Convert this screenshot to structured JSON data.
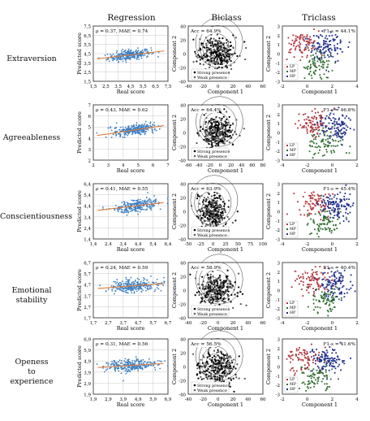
{
  "columns": [
    "Regression",
    "Biclass",
    "Triclass"
  ],
  "rows": [
    {
      "label": [
        "Extraversion"
      ],
      "regression": {
        "ann": "ρ = 0.37, MAE = 0.74",
        "yticks": [
          "1,5",
          "2,5",
          "3,5",
          "4,5",
          "5,5",
          "6,5",
          "7,5"
        ],
        "xticks": [
          "1,5",
          "2,5",
          "3,5",
          "4,5",
          "5,5",
          "6,5",
          "7,5"
        ],
        "range": [
          1.5,
          7.5
        ],
        "center": [
          4.4,
          4.35
        ],
        "slope": 0.16
      },
      "biclass": {
        "ann": "Acc = 64.9%",
        "xticks": [
          "-40",
          "-20",
          "0",
          "20",
          "40",
          "60"
        ],
        "yticks": [
          "40",
          "20",
          "0",
          "-20",
          "-40"
        ],
        "xlim": [
          -55,
          75
        ],
        "ylim": [
          -45,
          48
        ]
      },
      "triclass": {
        "ann": "F1-s = 44.1%",
        "xticks": [
          "-2",
          "0",
          "2",
          "4"
        ],
        "yticks": [
          "3",
          "2",
          "1",
          "0",
          "-1",
          "-2",
          "-3"
        ],
        "xlim": [
          -3.2,
          4.2
        ],
        "ylim": [
          -3.5,
          3.5
        ]
      }
    },
    {
      "label": [
        "Agreeableness"
      ],
      "regression": {
        "ann": "ρ = 0.43, MAE = 0.62",
        "yticks": [
          "2",
          "3",
          "4",
          "5",
          "6",
          "7"
        ],
        "xticks": [
          "2",
          "3",
          "4",
          "5",
          "6",
          "7"
        ],
        "range": [
          1.5,
          7.2
        ],
        "center": [
          4.6,
          4.6
        ],
        "slope": 0.2
      },
      "biclass": {
        "ann": "Acc = 64.4%",
        "xticks": [
          "-60",
          "-40",
          "-20",
          "0",
          "20",
          "40",
          "60",
          "80"
        ],
        "yticks": [
          "40",
          "20",
          "0",
          "-20",
          "-40"
        ],
        "xlim": [
          -65,
          88
        ],
        "ylim": [
          -45,
          48
        ]
      },
      "triclass": {
        "ann": "F1-s = 46.8%",
        "xticks": [
          "-4",
          "-2",
          "0",
          "2"
        ],
        "yticks": [
          "3",
          "2",
          "1",
          "0",
          "-1",
          "-2",
          "-3"
        ],
        "xlim": [
          -4.5,
          3.5
        ],
        "ylim": [
          -3.5,
          3.5
        ]
      }
    },
    {
      "label": [
        "Conscientiousness"
      ],
      "regression": {
        "ann": "ρ = 0.41, MAE = 0.55",
        "yticks": [
          "1,4",
          "2,4",
          "3,4",
          "4,4",
          "5,4",
          "6,4"
        ],
        "xticks": [
          "1,4",
          "2,4",
          "3,4",
          "4,4",
          "5,4",
          "6,4"
        ],
        "range": [
          1.4,
          6.4
        ],
        "center": [
          4.3,
          4.4
        ],
        "slope": 0.16
      },
      "biclass": {
        "ann": "Acc = 63.9%",
        "xticks": [
          "-50",
          "-25",
          "0",
          "25",
          "50",
          "75",
          "100"
        ],
        "yticks": [
          "40",
          "20",
          "0",
          "-20",
          "-40"
        ],
        "xlim": [
          -60,
          110
        ],
        "ylim": [
          -45,
          48
        ]
      },
      "triclass": {
        "ann": "F1-s = 45.4%",
        "xticks": [
          "-4",
          "-2",
          "0",
          "2"
        ],
        "yticks": [
          "3",
          "2",
          "1",
          "0",
          "-1",
          "-2",
          "-3"
        ],
        "xlim": [
          -4.5,
          3.5
        ],
        "ylim": [
          -3.5,
          3.5
        ]
      }
    },
    {
      "label": [
        "Emotional",
        "stability"
      ],
      "regression": {
        "ann": "ρ = 0.24, MAE = 0.59",
        "yticks": [
          "1,7",
          "2,7",
          "3,7",
          "4,7",
          "5,7",
          "6,7"
        ],
        "xticks": [
          "1,7",
          "2,7",
          "3,7",
          "4,7",
          "5,7",
          "6,7"
        ],
        "range": [
          1.7,
          6.7
        ],
        "center": [
          4.5,
          4.6
        ],
        "slope": 0.1
      },
      "biclass": {
        "ann": "Acc = 58.9%",
        "xticks": [
          "-40",
          "-20",
          "0",
          "20",
          "40",
          "60"
        ],
        "yticks": [
          "40",
          "20",
          "0",
          "-20",
          "-40"
        ],
        "xlim": [
          -55,
          75
        ],
        "ylim": [
          -45,
          48
        ]
      },
      "triclass": {
        "ann": "F1-s = 40.4%",
        "xticks": [
          "-4",
          "-2",
          "0",
          "2"
        ],
        "yticks": [
          "3",
          "2",
          "1",
          "0",
          "-1",
          "-2",
          "-3"
        ],
        "xlim": [
          -4.5,
          3.5
        ],
        "ylim": [
          -3.5,
          3.5
        ]
      }
    },
    {
      "label": [
        "Openess",
        "to",
        "experience"
      ],
      "regression": {
        "ann": "ρ = 0.31, MAE = 0.56",
        "yticks": [
          "1,9",
          "2,9",
          "3,9",
          "4,9",
          "5,9",
          "6,9"
        ],
        "xticks": [
          "1,9",
          "2,9",
          "3,9",
          "4,9",
          "5,9",
          "6,9"
        ],
        "range": [
          1.9,
          6.9
        ],
        "center": [
          4.4,
          4.5
        ],
        "slope": 0.08
      },
      "biclass": {
        "ann": "Acc = 56.5%",
        "xticks": [
          "-40",
          "-20",
          "0",
          "20",
          "40",
          "60"
        ],
        "yticks": [
          "40",
          "20",
          "0",
          "-20",
          "-40"
        ],
        "xlim": [
          -55,
          75
        ],
        "ylim": [
          -45,
          48
        ]
      },
      "triclass": {
        "ann": "F1-s = 41.6%",
        "xticks": [
          "-2",
          "0",
          "2",
          "4"
        ],
        "yticks": [
          "3",
          "2",
          "1",
          "0",
          "-1",
          "-2",
          "-3"
        ],
        "xlim": [
          -3.2,
          4.2
        ],
        "ylim": [
          -3.5,
          3.5
        ]
      }
    }
  ],
  "labels": {
    "reg_x": "Real score",
    "reg_y": "Predicted score",
    "comp1": "Component 1",
    "comp2": "Component 2",
    "bi_legend": [
      "Strong presence",
      "Weak presence"
    ],
    "tri_legend": [
      "LP",
      "MP",
      "HP"
    ]
  },
  "colors": {
    "reg_points": "#3b7fc4",
    "reg_line": "#e07b39",
    "lp": "#b0333a",
    "mp": "#2f6e2f",
    "hp": "#1f2f8a",
    "bi_points": "#000000"
  },
  "chart_data": [
    {
      "type": "scatter",
      "title": "Regression",
      "xlabel": "Real score",
      "ylabel": "Predicted score",
      "annotation_by_row": [
        "ρ = 0.37, MAE = 0.74",
        "ρ = 0.43, MAE = 0.62",
        "ρ = 0.41, MAE = 0.55",
        "ρ = 0.24, MAE = 0.59",
        "ρ = 0.31, MAE = 0.56"
      ]
    },
    {
      "type": "scatter",
      "title": "Biclass",
      "xlabel": "Component 1",
      "ylabel": "Component 2",
      "series": [
        {
          "name": "Strong presence"
        },
        {
          "name": "Weak presence"
        }
      ],
      "annotation_by_row": [
        "Acc = 64.9%",
        "Acc = 64.4%",
        "Acc = 63.9%",
        "Acc = 58.9%",
        "Acc = 56.5%"
      ]
    },
    {
      "type": "scatter",
      "title": "Triclass",
      "xlabel": "Component 1",
      "ylabel": "Component 2",
      "series": [
        {
          "name": "LP"
        },
        {
          "name": "MP"
        },
        {
          "name": "HP"
        }
      ],
      "annotation_by_row": [
        "F1-s = 44.1%",
        "F1-s = 46.8%",
        "F1-s = 45.4%",
        "F1-s = 40.4%",
        "F1-s = 41.6%"
      ]
    }
  ]
}
